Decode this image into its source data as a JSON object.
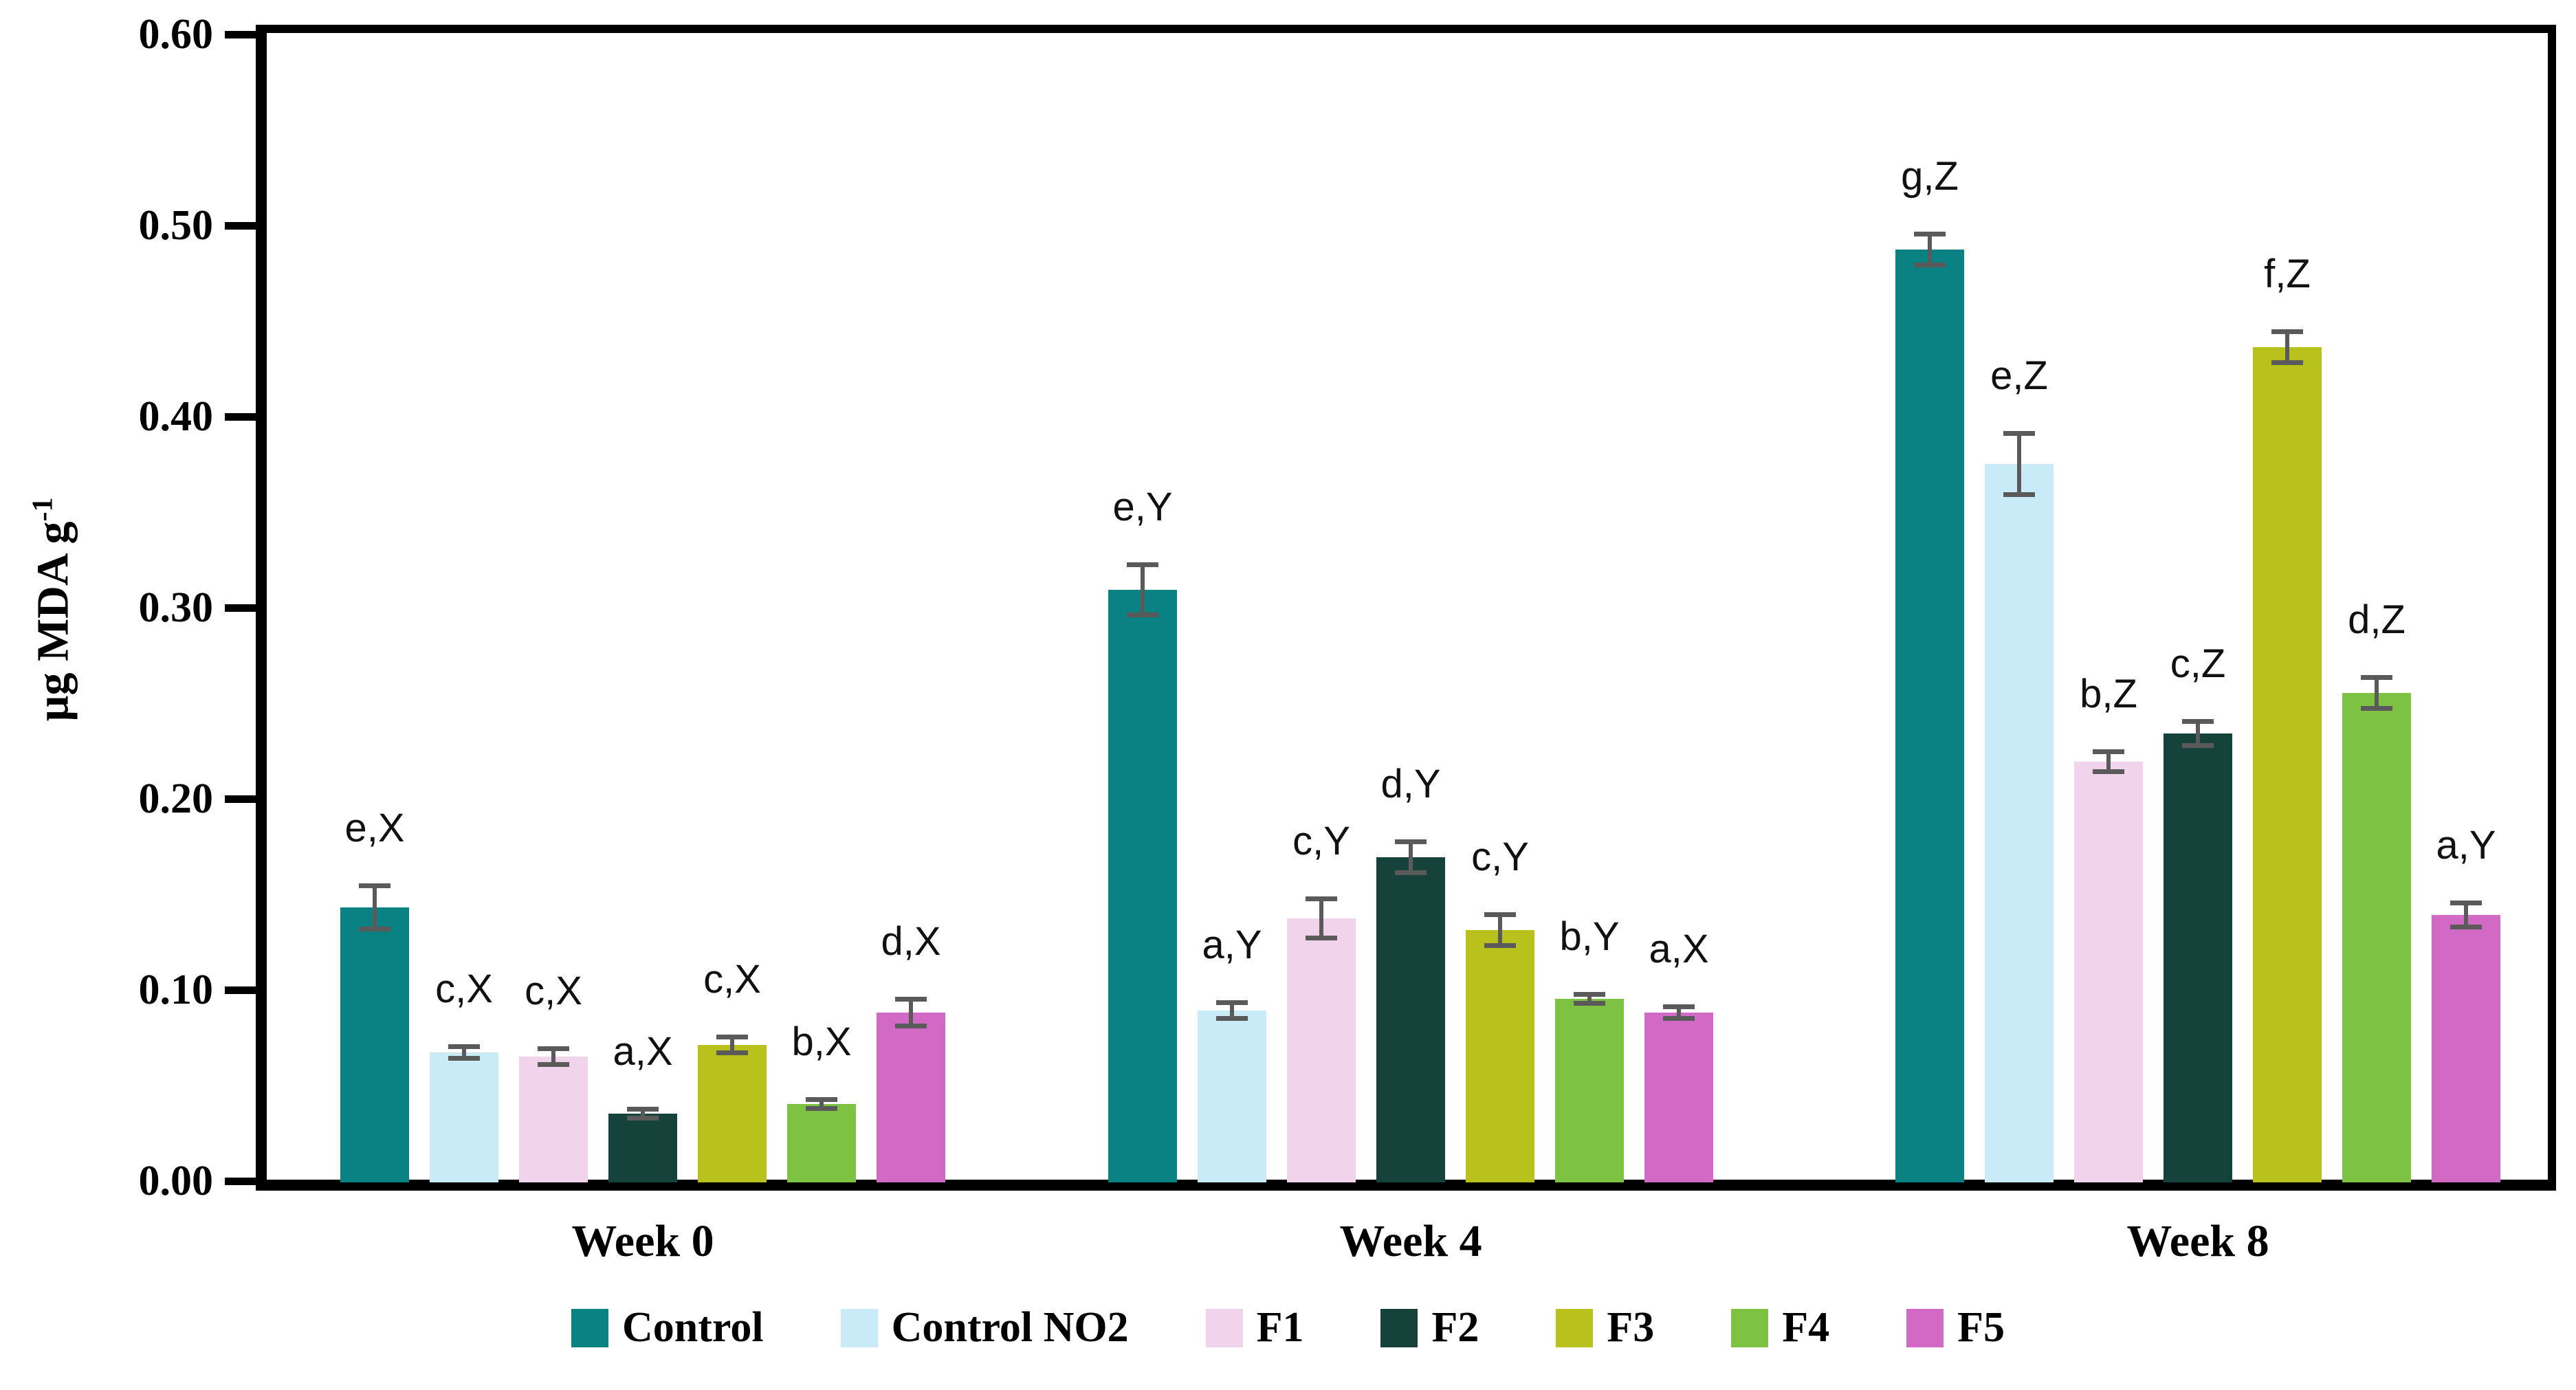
{
  "chart_data": {
    "type": "bar",
    "title": "",
    "ylabel_base": "µg MDA g",
    "ylabel_sup": "-1",
    "ylim": [
      0.0,
      0.6
    ],
    "ytick_labels": [
      "0.00",
      "0.10",
      "0.20",
      "0.30",
      "0.40",
      "0.50",
      "0.60"
    ],
    "ytick_values": [
      0.0,
      0.1,
      0.2,
      0.3,
      0.4,
      0.5,
      0.6
    ],
    "categories": [
      "Week 0",
      "Week 4",
      "Week 8"
    ],
    "grid": false,
    "legend_position": "bottom",
    "axis_color": "#000000",
    "error_bar_color": "#5a5a5a",
    "series": [
      {
        "name": "Control",
        "color": "#0a8183",
        "values": [
          0.144,
          0.31,
          0.488
        ],
        "errors": [
          0.011,
          0.013,
          0.008
        ],
        "point_labels": [
          "e,X",
          "e,Y",
          "g,Z"
        ]
      },
      {
        "name": "Control NO2",
        "color": "#c9eaf7",
        "values": [
          0.068,
          0.09,
          0.376
        ],
        "errors": [
          0.003,
          0.004,
          0.016
        ],
        "point_labels": [
          "c,X",
          "a,Y",
          "e,Z"
        ]
      },
      {
        "name": "F1",
        "color": "#f1d3ec",
        "values": [
          0.066,
          0.138,
          0.22
        ],
        "errors": [
          0.004,
          0.01,
          0.005
        ],
        "point_labels": [
          "c,X",
          "c,Y",
          "b,Z"
        ]
      },
      {
        "name": "F2",
        "color": "#16423c",
        "values": [
          0.036,
          0.17,
          0.235
        ],
        "errors": [
          0.002,
          0.008,
          0.006
        ],
        "point_labels": [
          "a,X",
          "d,Y",
          "c,Z"
        ]
      },
      {
        "name": "F3",
        "color": "#b9c11c",
        "values": [
          0.072,
          0.132,
          0.437
        ],
        "errors": [
          0.004,
          0.008,
          0.008
        ],
        "point_labels": [
          "c,X",
          "c,Y",
          "f,Z"
        ]
      },
      {
        "name": "F4",
        "color": "#7dc243",
        "values": [
          0.041,
          0.096,
          0.256
        ],
        "errors": [
          0.002,
          0.002,
          0.008
        ],
        "point_labels": [
          "b,X",
          "b,Y",
          "d,Z"
        ]
      },
      {
        "name": "F5",
        "color": "#d269c5",
        "values": [
          0.089,
          0.089,
          0.14
        ],
        "errors": [
          0.007,
          0.003,
          0.006
        ],
        "point_labels": [
          "d,X",
          "a,X",
          "a,Y"
        ]
      }
    ]
  }
}
